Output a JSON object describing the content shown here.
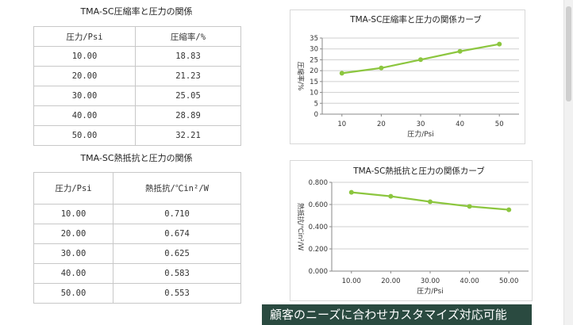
{
  "table1": {
    "title": "TMA-SC圧縮率と圧力の関係",
    "headers": [
      "圧力/Psi",
      "圧縮率/%"
    ],
    "rows": [
      [
        "10.00",
        "18.83"
      ],
      [
        "20.00",
        "21.23"
      ],
      [
        "30.00",
        "25.05"
      ],
      [
        "40.00",
        "28.89"
      ],
      [
        "50.00",
        "32.21"
      ]
    ]
  },
  "table2": {
    "title": "TMA-SC熱抵抗と圧力の関係",
    "headers": [
      "圧力/Psi",
      "熱抵抗/℃in²/W"
    ],
    "rows": [
      [
        "10.00",
        "0.710"
      ],
      [
        "20.00",
        "0.674"
      ],
      [
        "30.00",
        "0.625"
      ],
      [
        "40.00",
        "0.583"
      ],
      [
        "50.00",
        "0.553"
      ]
    ]
  },
  "chart_data": [
    {
      "type": "line",
      "title": "TMA-SC圧縮率と圧力の関係カーブ",
      "xlabel": "圧力/Psi",
      "ylabel": "圧縮率/%",
      "x": [
        "10",
        "20",
        "30",
        "40",
        "50"
      ],
      "series": [
        {
          "values": [
            18.83,
            21.23,
            25.05,
            28.89,
            32.21
          ]
        }
      ],
      "ylim": [
        0,
        35
      ],
      "yticks": [
        "0",
        "5",
        "10",
        "15",
        "20",
        "25",
        "30",
        "35"
      ],
      "grid": true,
      "color": "#8cc63f"
    },
    {
      "type": "line",
      "title": "TMA-SC熱抵抗と圧力の関係カーブ",
      "xlabel": "圧力/Psi",
      "ylabel": "熱抵抗/℃in²/W",
      "x": [
        "10.00",
        "20.00",
        "30.00",
        "40.00",
        "50.00"
      ],
      "series": [
        {
          "values": [
            0.71,
            0.674,
            0.625,
            0.583,
            0.553
          ]
        }
      ],
      "ylim": [
        0,
        0.8
      ],
      "yticks": [
        "0.000",
        "0.200",
        "0.400",
        "0.600",
        "0.800"
      ],
      "grid": true,
      "color": "#8cc63f"
    }
  ],
  "banner": {
    "text": "顧客のニーズに合わせカスタマイズ対応可能"
  }
}
